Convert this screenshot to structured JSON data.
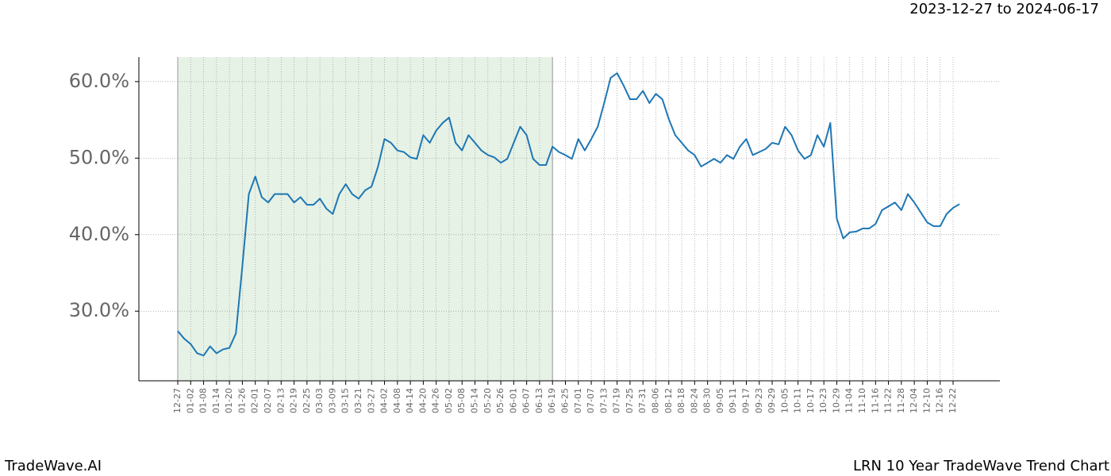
{
  "chart_data": {
    "type": "line",
    "date_range": "2023-12-27 to 2024-06-17",
    "brand": "TradeWave.AI",
    "title": "LRN 10 Year TradeWave Trend Chart",
    "categories": [
      "12-27",
      null,
      "01-02",
      null,
      "01-08",
      null,
      "01-14",
      null,
      "01-20",
      null,
      "01-26",
      null,
      "02-01",
      null,
      "02-07",
      null,
      "02-13",
      null,
      "02-19",
      null,
      "02-25",
      null,
      "03-03",
      null,
      "03-09",
      null,
      "03-15",
      null,
      "03-21",
      null,
      "03-27",
      null,
      "04-02",
      null,
      "04-08",
      null,
      "04-14",
      null,
      "04-20",
      null,
      "04-26",
      null,
      "05-02",
      null,
      "05-08",
      null,
      "05-14",
      null,
      "05-20",
      null,
      "05-26",
      null,
      "06-01",
      null,
      "06-07",
      null,
      "06-13",
      null,
      "06-19",
      null,
      "06-25",
      null,
      "07-01",
      null,
      "07-07",
      null,
      "07-13",
      null,
      "07-19",
      null,
      "07-25",
      null,
      "07-31",
      null,
      "08-06",
      null,
      "08-12",
      null,
      "08-18",
      null,
      "08-24",
      null,
      "08-30",
      null,
      "09-05",
      null,
      "09-11",
      null,
      "09-17",
      null,
      "09-23",
      null,
      "09-29",
      null,
      "10-05",
      null,
      "10-11",
      null,
      "10-17",
      null,
      "10-23",
      null,
      "10-29",
      null,
      "11-04",
      null,
      "11-10",
      null,
      "11-16",
      null,
      "11-22",
      null,
      "11-28",
      null,
      "12-04",
      null,
      "12-10",
      null,
      "12-16",
      null,
      "12-22",
      null
    ],
    "values": [
      27.4,
      26.4,
      25.7,
      24.5,
      24.2,
      25.4,
      24.5,
      25.0,
      25.2,
      27.1,
      35.9,
      45.3,
      47.6,
      44.9,
      44.2,
      45.3,
      45.3,
      45.3,
      44.2,
      44.9,
      43.9,
      43.9,
      44.7,
      43.4,
      42.7,
      45.3,
      46.6,
      45.3,
      44.7,
      45.8,
      46.3,
      48.9,
      52.5,
      52.0,
      51.0,
      50.8,
      50.1,
      49.9,
      53.0,
      52.0,
      53.6,
      54.6,
      55.3,
      52.0,
      51.0,
      53.0,
      52.0,
      51.0,
      50.4,
      50.1,
      49.4,
      49.9,
      52.0,
      54.1,
      53.0,
      49.9,
      49.1,
      49.1,
      51.5,
      50.8,
      50.4,
      49.9,
      52.5,
      51.0,
      52.5,
      54.1,
      57.2,
      60.5,
      61.1,
      59.5,
      57.7,
      57.7,
      58.8,
      57.2,
      58.4,
      57.7,
      55.1,
      53.0,
      52.0,
      51.0,
      50.4,
      48.9,
      49.4,
      49.9,
      49.4,
      50.4,
      49.9,
      51.5,
      52.5,
      50.4,
      50.8,
      51.2,
      52.0,
      51.8,
      54.1,
      53.0,
      51.0,
      49.9,
      50.4,
      53.0,
      51.5,
      54.6,
      42.1,
      39.5,
      40.3,
      40.4,
      40.8,
      40.8,
      41.4,
      43.2,
      43.7,
      44.2,
      43.2,
      45.3,
      44.2,
      42.9,
      41.6,
      41.1,
      41.1,
      42.7,
      43.5,
      44.0
    ],
    "color": "#1f77b4",
    "shaded_range": [
      "12-27",
      "06-19"
    ],
    "shade_color": "#e6f2e6",
    "ylim": [
      20.9,
      63.2
    ],
    "yticks": [
      {
        "value": 30,
        "label": "30.0%"
      },
      {
        "value": 40,
        "label": "40.0%"
      },
      {
        "value": 50,
        "label": "50.0%"
      },
      {
        "value": 60,
        "label": "60.0%"
      }
    ],
    "grid": true
  }
}
